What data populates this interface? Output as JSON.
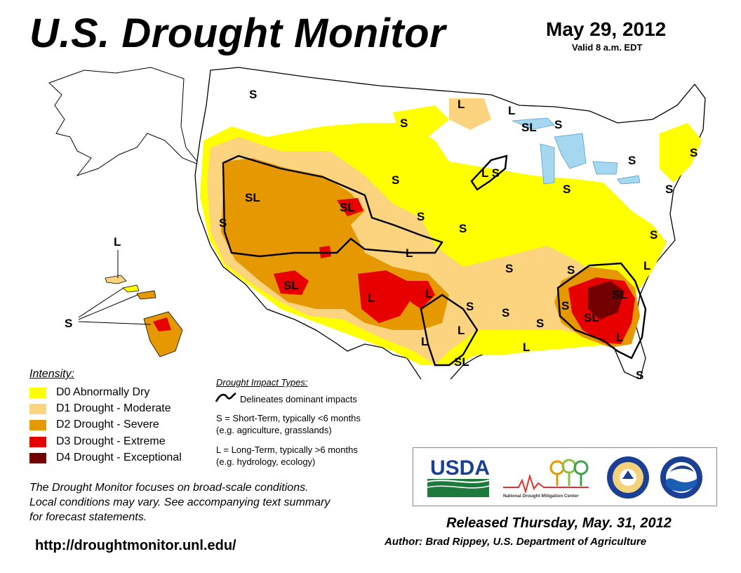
{
  "header": {
    "title": "U.S. Drought Monitor",
    "date": "May 29, 2012",
    "valid": "Valid 8 a.m. EDT"
  },
  "colors": {
    "D0": "#ffff00",
    "D1": "#fcd37f",
    "D2": "#e69800",
    "D3": "#e60000",
    "D4": "#730000",
    "water": "#a5d7f0",
    "border": "#000000"
  },
  "legend": {
    "title": "Intensity:",
    "items": [
      {
        "code": "D0",
        "label": "D0 Abnormally Dry"
      },
      {
        "code": "D1",
        "label": "D1 Drought - Moderate"
      },
      {
        "code": "D2",
        "label": "D2 Drought - Severe"
      },
      {
        "code": "D3",
        "label": "D3 Drought - Extreme"
      },
      {
        "code": "D4",
        "label": "D4 Drought - Exceptional"
      }
    ]
  },
  "impacts": {
    "title": "Drought Impact Types:",
    "delineates": "Delineates dominant impacts",
    "short_line1": "S = Short-Term, typically <6 months",
    "short_line2": "(e.g. agriculture, grasslands)",
    "long_line1": "L = Long-Term, typically >6 months",
    "long_line2": "(e.g. hydrology, ecology)"
  },
  "map_labels": {
    "S": "S",
    "L": "L",
    "SL": "SL",
    "LS": "L S"
  },
  "footnote": {
    "line1": "The Drought Monitor focuses on broad-scale conditions.",
    "line2": "Local conditions may vary. See accompanying text summary",
    "line3": "for forecast statements."
  },
  "url": "http://droughtmonitor.unl.edu/",
  "logos": {
    "usda": "USDA",
    "ndmc": "National Drought Mitigation Center"
  },
  "footer": {
    "released": "Released Thursday, May. 31, 2012",
    "author": "Author: Brad Rippey, U.S. Department of Agriculture"
  }
}
